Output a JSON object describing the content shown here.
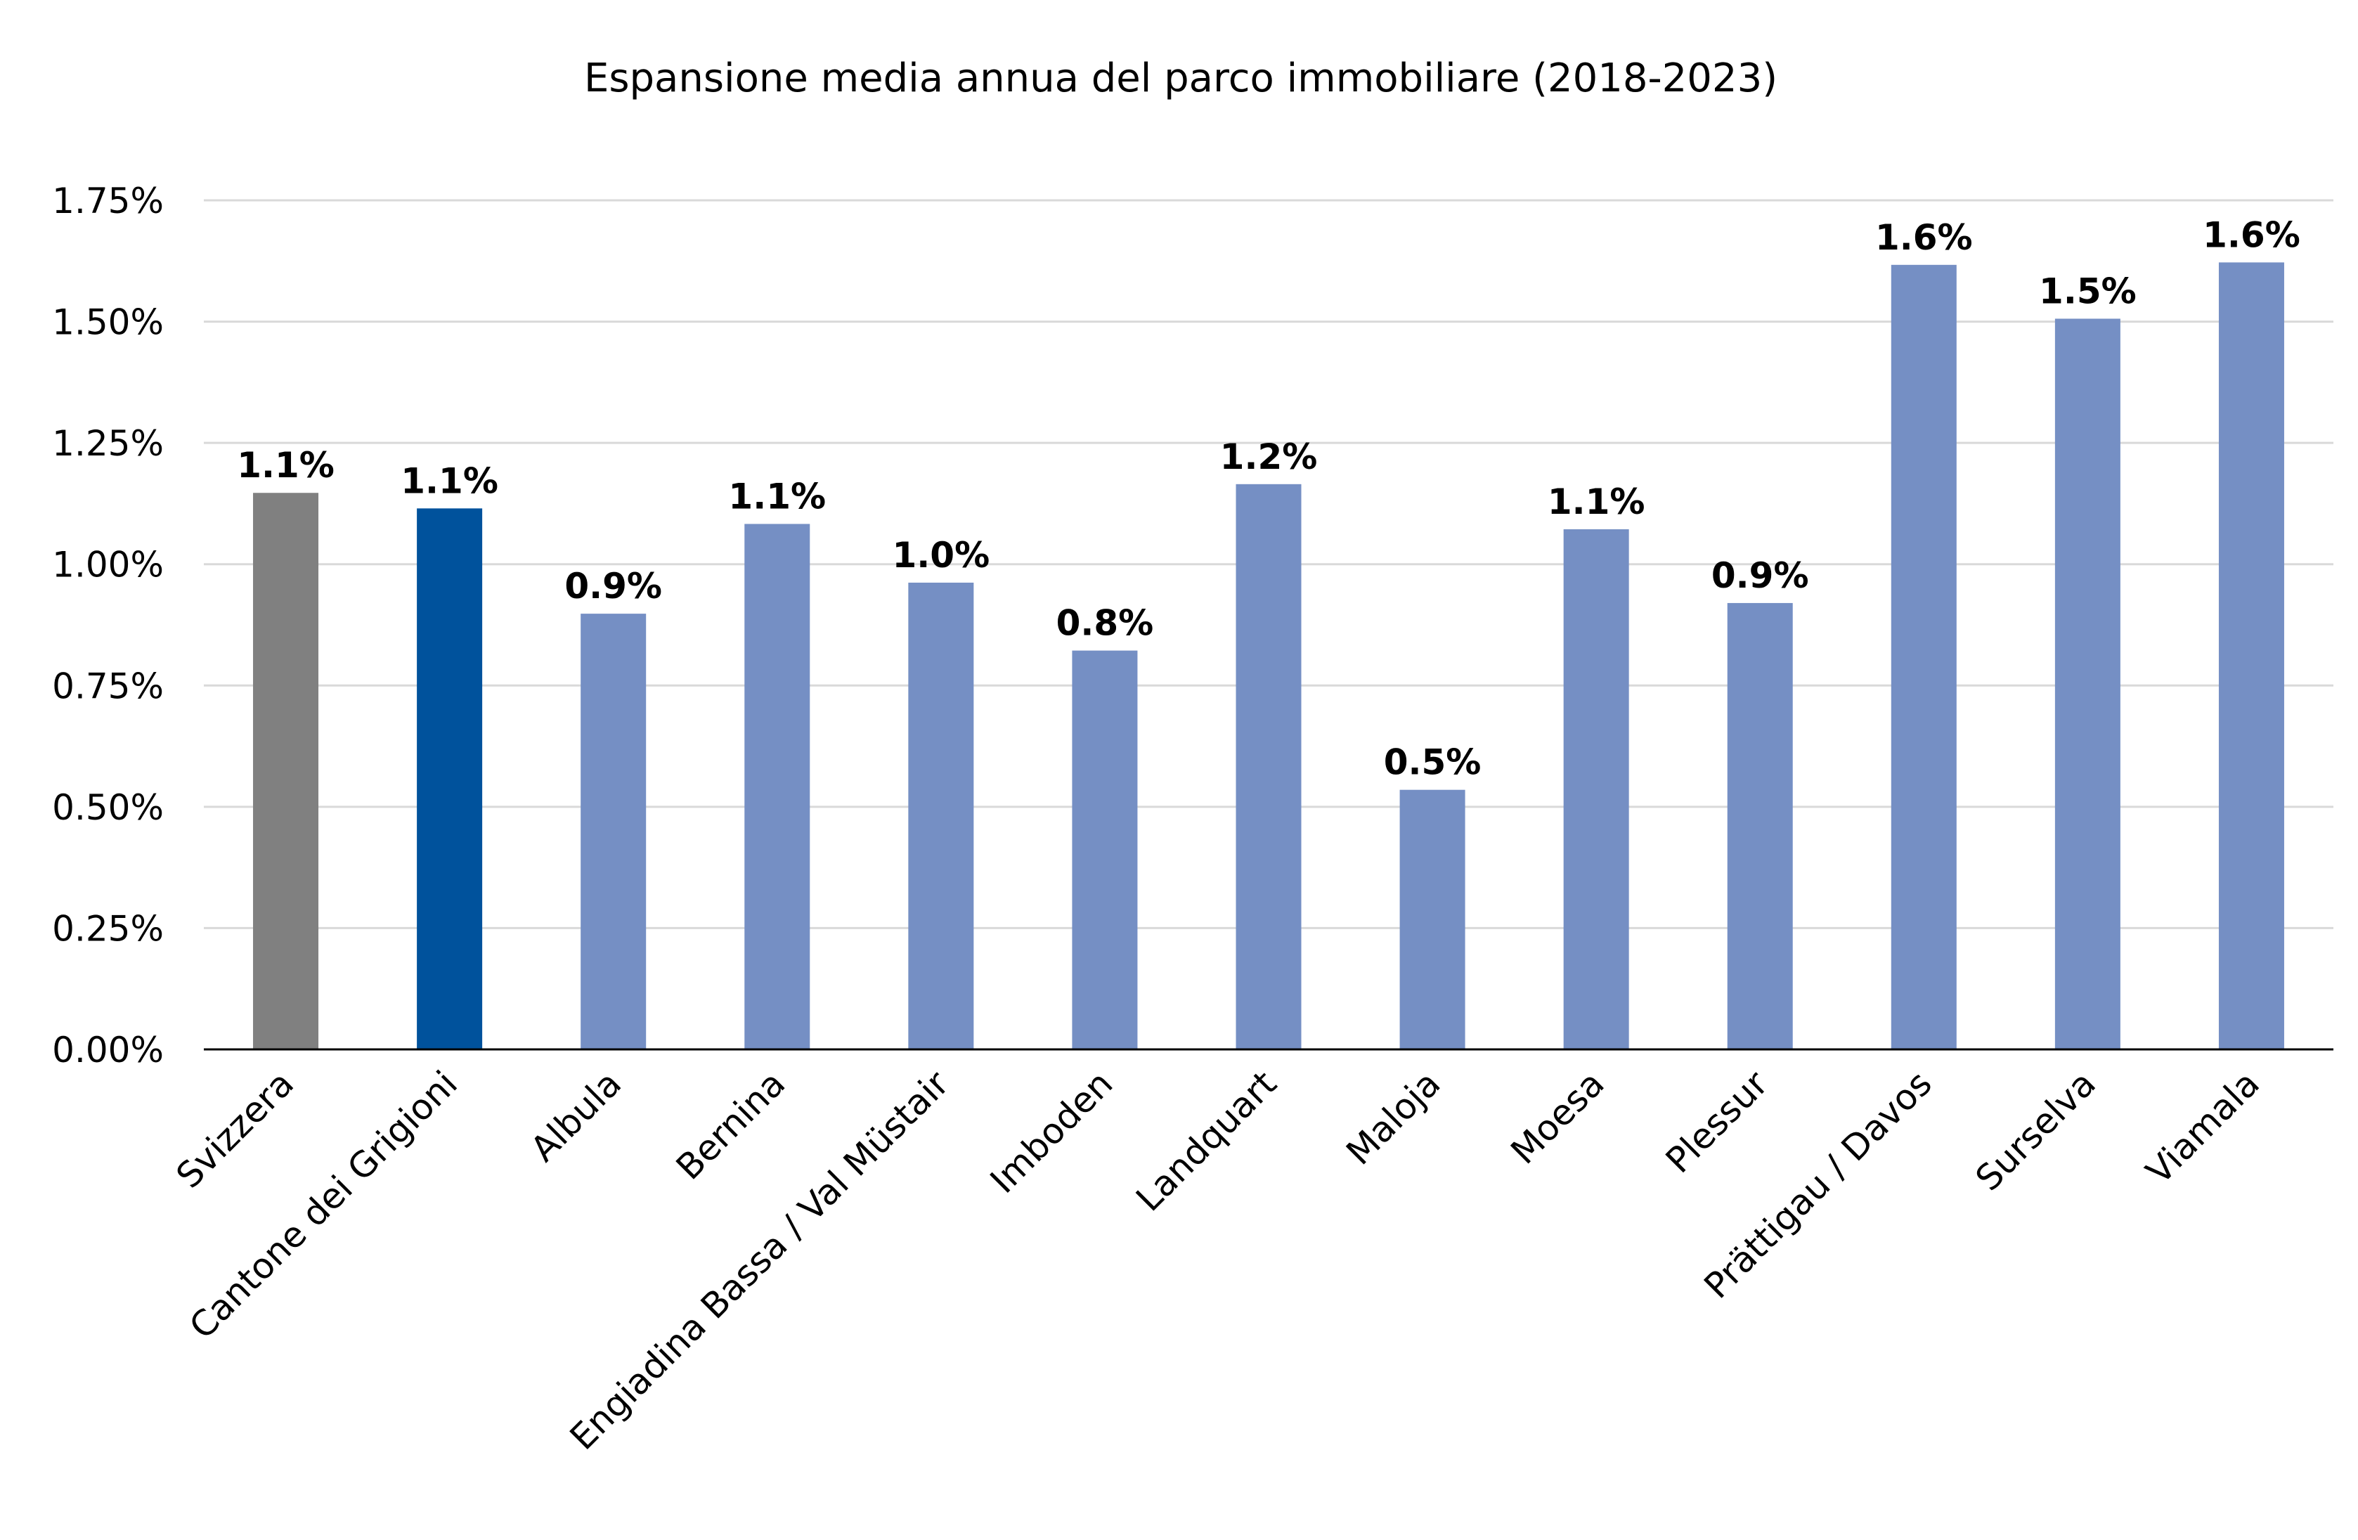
{
  "chart_data": {
    "type": "bar",
    "title": "Espansione media annua del parco immobiliare (2018-2023)",
    "xlabel": "",
    "ylabel": "",
    "ylim": [
      0,
      1.75
    ],
    "y_ticks": [
      0,
      0.25,
      0.5,
      0.75,
      1.0,
      1.25,
      1.5,
      1.75
    ],
    "y_tick_labels": [
      "0.00%",
      "0.25%",
      "0.50%",
      "0.75%",
      "1.00%",
      "1.25%",
      "1.50%",
      "1.75%"
    ],
    "grid": true,
    "legend": "none",
    "categories": [
      "Svizzera",
      "Cantone dei Grigioni",
      "Albula",
      "Bernina",
      "Engiadina Bassa / Val Müstair",
      "Imboden",
      "Landquart",
      "Maloja",
      "Moesa",
      "Plessur",
      "Prättigau / Davos",
      "Surselva",
      "Viamala"
    ],
    "values": [
      1.147,
      1.115,
      0.898,
      1.083,
      0.962,
      0.822,
      1.165,
      0.535,
      1.072,
      0.92,
      1.617,
      1.506,
      1.622
    ],
    "data_labels": [
      "1.1%",
      "1.1%",
      "0.9%",
      "1.1%",
      "1.0%",
      "0.8%",
      "1.2%",
      "0.5%",
      "1.1%",
      "0.9%",
      "1.6%",
      "1.5%",
      "1.6%"
    ],
    "bar_colors": [
      "#808080",
      "#00529c",
      "#758fc4",
      "#758fc4",
      "#758fc4",
      "#758fc4",
      "#758fc4",
      "#758fc4",
      "#758fc4",
      "#758fc4",
      "#758fc4",
      "#758fc4",
      "#758fc4"
    ]
  }
}
